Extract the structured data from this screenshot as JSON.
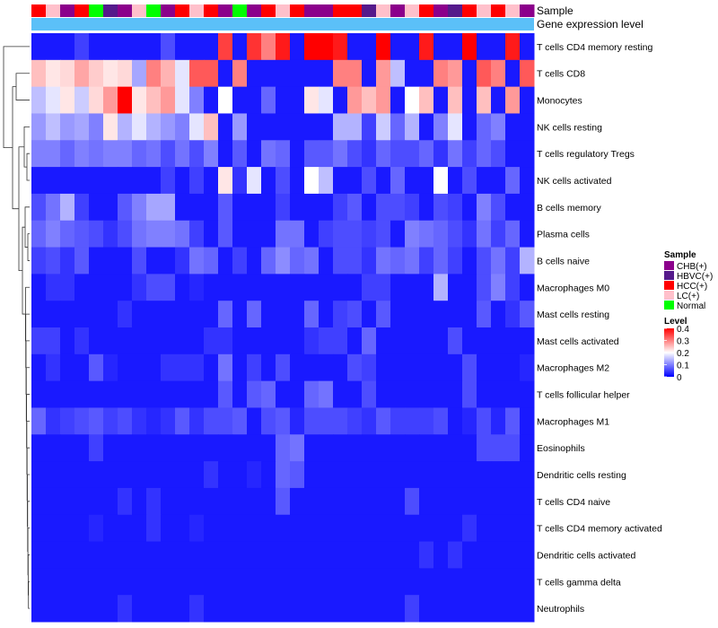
{
  "chart_data": {
    "type": "heatmap",
    "annotation_row_labels": [
      "Sample",
      "Gene expression level"
    ],
    "row_labels": [
      "T cells CD4 memory resting",
      "T cells CD8",
      "Monocytes",
      "NK cells resting",
      "T cells regulatory  Tregs",
      "NK cells activated",
      "B cells memory",
      "Plasma cells",
      "B cells naive",
      "Macrophages M0",
      "Mast cells resting",
      "Mast cells activated",
      "Macrophages M2",
      "T cells follicular helper",
      "Macrophages M1",
      "Eosinophils",
      "Dendritic cells resting",
      "T cells CD4 naive",
      "T cells CD4 memory activated",
      "Dendritic cells activated",
      "T cells gamma delta",
      "Neutrophils"
    ],
    "sample_groups": [
      "HCC(+)",
      "LC(+)",
      "CHB(+)",
      "HCC(+)",
      "Normal",
      "HBVC(+)",
      "CHB(+)",
      "LC(+)",
      "Normal",
      "CHB(+)",
      "HCC(+)",
      "LC(+)",
      "HCC(+)",
      "CHB(+)",
      "Normal",
      "CHB(+)",
      "HCC(+)",
      "LC(+)",
      "HCC(+)",
      "CHB(+)",
      "CHB(+)",
      "HCC(+)",
      "HCC(+)",
      "HBVC(+)",
      "LC(+)",
      "CHB(+)",
      "LC(+)",
      "HCC(+)",
      "CHB(+)",
      "HBVC(+)",
      "HCC(+)",
      "LC(+)",
      "HCC(+)",
      "LC(+)",
      "CHB(+)"
    ],
    "values": [
      [
        0.02,
        0.02,
        0.02,
        0.05,
        0.02,
        0.02,
        0.02,
        0.02,
        0.02,
        0.06,
        0.02,
        0.02,
        0.02,
        0.35,
        0.02,
        0.36,
        0.3,
        0.38,
        0.02,
        0.4,
        0.4,
        0.38,
        0.02,
        0.02,
        0.4,
        0.02,
        0.02,
        0.38,
        0.02,
        0.02,
        0.4,
        0.02,
        0.02,
        0.38,
        0.02
      ],
      [
        0.25,
        0.22,
        0.23,
        0.27,
        0.24,
        0.22,
        0.23,
        0.13,
        0.3,
        0.26,
        0.18,
        0.33,
        0.33,
        0.02,
        0.3,
        0.02,
        0.02,
        0.02,
        0.02,
        0.02,
        0.02,
        0.3,
        0.3,
        0.02,
        0.28,
        0.15,
        0.02,
        0.02,
        0.3,
        0.28,
        0.02,
        0.33,
        0.3,
        0.02,
        0.33
      ],
      [
        0.15,
        0.18,
        0.22,
        0.16,
        0.23,
        0.28,
        0.4,
        0.22,
        0.25,
        0.28,
        0.18,
        0.1,
        0.02,
        0.2,
        0.02,
        0.02,
        0.08,
        0.02,
        0.02,
        0.22,
        0.18,
        0.02,
        0.28,
        0.25,
        0.28,
        0.02,
        0.2,
        0.25,
        0.02,
        0.25,
        0.02,
        0.25,
        0.02,
        0.28,
        0.02
      ],
      [
        0.12,
        0.15,
        0.12,
        0.13,
        0.1,
        0.22,
        0.14,
        0.18,
        0.14,
        0.12,
        0.1,
        0.18,
        0.25,
        0.02,
        0.12,
        0.02,
        0.02,
        0.02,
        0.02,
        0.02,
        0.02,
        0.14,
        0.14,
        0.05,
        0.16,
        0.08,
        0.14,
        0.02,
        0.1,
        0.18,
        0.02,
        0.08,
        0.1,
        0.02,
        0.02
      ],
      [
        0.1,
        0.1,
        0.08,
        0.1,
        0.09,
        0.1,
        0.1,
        0.08,
        0.09,
        0.06,
        0.09,
        0.06,
        0.1,
        0.02,
        0.07,
        0.02,
        0.09,
        0.08,
        0.02,
        0.07,
        0.07,
        0.09,
        0.06,
        0.04,
        0.08,
        0.06,
        0.06,
        0.08,
        0.04,
        0.09,
        0.05,
        0.08,
        0.06,
        0.02,
        0.02
      ],
      [
        0.02,
        0.02,
        0.02,
        0.02,
        0.02,
        0.02,
        0.02,
        0.02,
        0.02,
        0.05,
        0.02,
        0.05,
        0.02,
        0.22,
        0.04,
        0.18,
        0.02,
        0.06,
        0.02,
        0.2,
        0.15,
        0.02,
        0.02,
        0.06,
        0.02,
        0.08,
        0.02,
        0.02,
        0.2,
        0.02,
        0.06,
        0.02,
        0.02,
        0.08,
        0.02
      ],
      [
        0.06,
        0.09,
        0.14,
        0.05,
        0.02,
        0.02,
        0.07,
        0.1,
        0.13,
        0.13,
        0.02,
        0.02,
        0.02,
        0.07,
        0.02,
        0.02,
        0.02,
        0.05,
        0.02,
        0.02,
        0.02,
        0.05,
        0.07,
        0.02,
        0.06,
        0.06,
        0.05,
        0.02,
        0.06,
        0.05,
        0.02,
        0.1,
        0.06,
        0.02,
        0.02
      ],
      [
        0.08,
        0.1,
        0.08,
        0.07,
        0.06,
        0.04,
        0.06,
        0.09,
        0.1,
        0.1,
        0.09,
        0.05,
        0.02,
        0.07,
        0.02,
        0.02,
        0.02,
        0.09,
        0.09,
        0.02,
        0.05,
        0.06,
        0.06,
        0.05,
        0.06,
        0.02,
        0.1,
        0.09,
        0.08,
        0.06,
        0.04,
        0.09,
        0.05,
        0.08,
        0.02
      ],
      [
        0.05,
        0.06,
        0.04,
        0.07,
        0.02,
        0.02,
        0.02,
        0.06,
        0.02,
        0.02,
        0.04,
        0.09,
        0.08,
        0.02,
        0.05,
        0.02,
        0.08,
        0.11,
        0.08,
        0.09,
        0.02,
        0.06,
        0.06,
        0.04,
        0.09,
        0.08,
        0.09,
        0.05,
        0.08,
        0.05,
        0.02,
        0.06,
        0.09,
        0.05,
        0.14
      ],
      [
        0.02,
        0.04,
        0.04,
        0.02,
        0.02,
        0.02,
        0.02,
        0.04,
        0.06,
        0.06,
        0.02,
        0.03,
        0.02,
        0.02,
        0.02,
        0.02,
        0.02,
        0.02,
        0.02,
        0.02,
        0.02,
        0.02,
        0.02,
        0.05,
        0.05,
        0.02,
        0.02,
        0.02,
        0.14,
        0.02,
        0.02,
        0.06,
        0.1,
        0.05,
        0.02
      ],
      [
        0.02,
        0.02,
        0.02,
        0.02,
        0.02,
        0.02,
        0.04,
        0.02,
        0.02,
        0.02,
        0.02,
        0.02,
        0.02,
        0.08,
        0.02,
        0.08,
        0.02,
        0.02,
        0.02,
        0.08,
        0.02,
        0.05,
        0.06,
        0.02,
        0.07,
        0.02,
        0.02,
        0.02,
        0.02,
        0.02,
        0.02,
        0.07,
        0.02,
        0.04,
        0.07
      ],
      [
        0.05,
        0.05,
        0.02,
        0.04,
        0.02,
        0.02,
        0.02,
        0.02,
        0.02,
        0.02,
        0.02,
        0.02,
        0.04,
        0.04,
        0.02,
        0.02,
        0.02,
        0.02,
        0.02,
        0.04,
        0.05,
        0.05,
        0.02,
        0.08,
        0.02,
        0.02,
        0.02,
        0.02,
        0.02,
        0.06,
        0.02,
        0.02,
        0.02,
        0.02,
        0.02
      ],
      [
        0.02,
        0.04,
        0.02,
        0.02,
        0.07,
        0.03,
        0.02,
        0.02,
        0.02,
        0.04,
        0.04,
        0.04,
        0.02,
        0.09,
        0.02,
        0.05,
        0.02,
        0.06,
        0.02,
        0.02,
        0.02,
        0.02,
        0.06,
        0.05,
        0.02,
        0.02,
        0.02,
        0.02,
        0.02,
        0.02,
        0.06,
        0.02,
        0.02,
        0.02,
        0.03
      ],
      [
        0.02,
        0.02,
        0.02,
        0.02,
        0.02,
        0.02,
        0.02,
        0.02,
        0.02,
        0.02,
        0.02,
        0.02,
        0.02,
        0.07,
        0.02,
        0.07,
        0.08,
        0.02,
        0.02,
        0.08,
        0.09,
        0.02,
        0.02,
        0.06,
        0.02,
        0.02,
        0.02,
        0.02,
        0.02,
        0.02,
        0.06,
        0.02,
        0.02,
        0.02,
        0.02
      ],
      [
        0.08,
        0.04,
        0.05,
        0.06,
        0.07,
        0.05,
        0.06,
        0.04,
        0.03,
        0.04,
        0.07,
        0.04,
        0.06,
        0.06,
        0.07,
        0.02,
        0.06,
        0.07,
        0.03,
        0.06,
        0.06,
        0.06,
        0.05,
        0.04,
        0.07,
        0.05,
        0.05,
        0.05,
        0.06,
        0.02,
        0.03,
        0.06,
        0.03,
        0.07,
        0.02
      ],
      [
        0.02,
        0.02,
        0.02,
        0.02,
        0.05,
        0.02,
        0.02,
        0.02,
        0.02,
        0.02,
        0.02,
        0.02,
        0.02,
        0.02,
        0.02,
        0.02,
        0.02,
        0.08,
        0.09,
        0.02,
        0.02,
        0.02,
        0.02,
        0.02,
        0.02,
        0.02,
        0.02,
        0.02,
        0.02,
        0.02,
        0.02,
        0.06,
        0.06,
        0.06,
        0.02
      ],
      [
        0.02,
        0.02,
        0.02,
        0.02,
        0.02,
        0.02,
        0.02,
        0.02,
        0.02,
        0.02,
        0.02,
        0.02,
        0.04,
        0.02,
        0.02,
        0.03,
        0.02,
        0.08,
        0.07,
        0.02,
        0.02,
        0.02,
        0.02,
        0.02,
        0.02,
        0.02,
        0.02,
        0.02,
        0.02,
        0.02,
        0.02,
        0.02,
        0.02,
        0.02,
        0.02
      ],
      [
        0.02,
        0.02,
        0.02,
        0.02,
        0.02,
        0.02,
        0.04,
        0.02,
        0.04,
        0.02,
        0.02,
        0.02,
        0.02,
        0.02,
        0.02,
        0.02,
        0.02,
        0.07,
        0.02,
        0.02,
        0.02,
        0.02,
        0.02,
        0.02,
        0.02,
        0.02,
        0.06,
        0.02,
        0.02,
        0.02,
        0.02,
        0.02,
        0.02,
        0.02,
        0.02
      ],
      [
        0.02,
        0.02,
        0.02,
        0.02,
        0.03,
        0.02,
        0.02,
        0.02,
        0.04,
        0.02,
        0.02,
        0.03,
        0.02,
        0.02,
        0.02,
        0.02,
        0.02,
        0.02,
        0.02,
        0.02,
        0.02,
        0.02,
        0.02,
        0.02,
        0.02,
        0.02,
        0.02,
        0.02,
        0.02,
        0.02,
        0.04,
        0.02,
        0.02,
        0.02,
        0.02
      ],
      [
        0.02,
        0.02,
        0.02,
        0.02,
        0.02,
        0.02,
        0.02,
        0.02,
        0.02,
        0.02,
        0.02,
        0.02,
        0.02,
        0.02,
        0.02,
        0.02,
        0.02,
        0.02,
        0.02,
        0.02,
        0.02,
        0.02,
        0.02,
        0.02,
        0.02,
        0.02,
        0.02,
        0.04,
        0.02,
        0.04,
        0.02,
        0.02,
        0.02,
        0.02,
        0.02
      ],
      [
        0.02,
        0.02,
        0.02,
        0.02,
        0.02,
        0.02,
        0.02,
        0.02,
        0.02,
        0.02,
        0.02,
        0.02,
        0.02,
        0.02,
        0.02,
        0.02,
        0.02,
        0.02,
        0.02,
        0.02,
        0.02,
        0.02,
        0.02,
        0.02,
        0.02,
        0.02,
        0.02,
        0.02,
        0.02,
        0.02,
        0.02,
        0.02,
        0.02,
        0.02,
        0.02
      ],
      [
        0.02,
        0.02,
        0.02,
        0.02,
        0.02,
        0.02,
        0.04,
        0.02,
        0.02,
        0.02,
        0.02,
        0.04,
        0.02,
        0.02,
        0.02,
        0.02,
        0.02,
        0.02,
        0.02,
        0.02,
        0.02,
        0.02,
        0.02,
        0.02,
        0.02,
        0.02,
        0.05,
        0.02,
        0.02,
        0.02,
        0.02,
        0.02,
        0.02,
        0.02,
        0.02
      ]
    ],
    "legend": {
      "sample": {
        "title": "Sample",
        "entries": [
          {
            "label": "CHB(+)",
            "color": "#8B008B"
          },
          {
            "label": "HBVC(+)",
            "color": "#551A8B"
          },
          {
            "label": "HCC(+)",
            "color": "#FF0000"
          },
          {
            "label": "LC(+)",
            "color": "#FFC0CB"
          },
          {
            "label": "Normal",
            "color": "#00FF00"
          }
        ]
      },
      "level": {
        "title": "Level",
        "ticks": [
          "0.4",
          "0.3",
          "0.2",
          "0.1",
          "0"
        ],
        "range": [
          0,
          0.4
        ],
        "colors": {
          "low": "#0000FF",
          "mid": "#FFFFFF",
          "high": "#FF0000"
        }
      }
    },
    "gene_expression_color": "#5BC0F8"
  }
}
